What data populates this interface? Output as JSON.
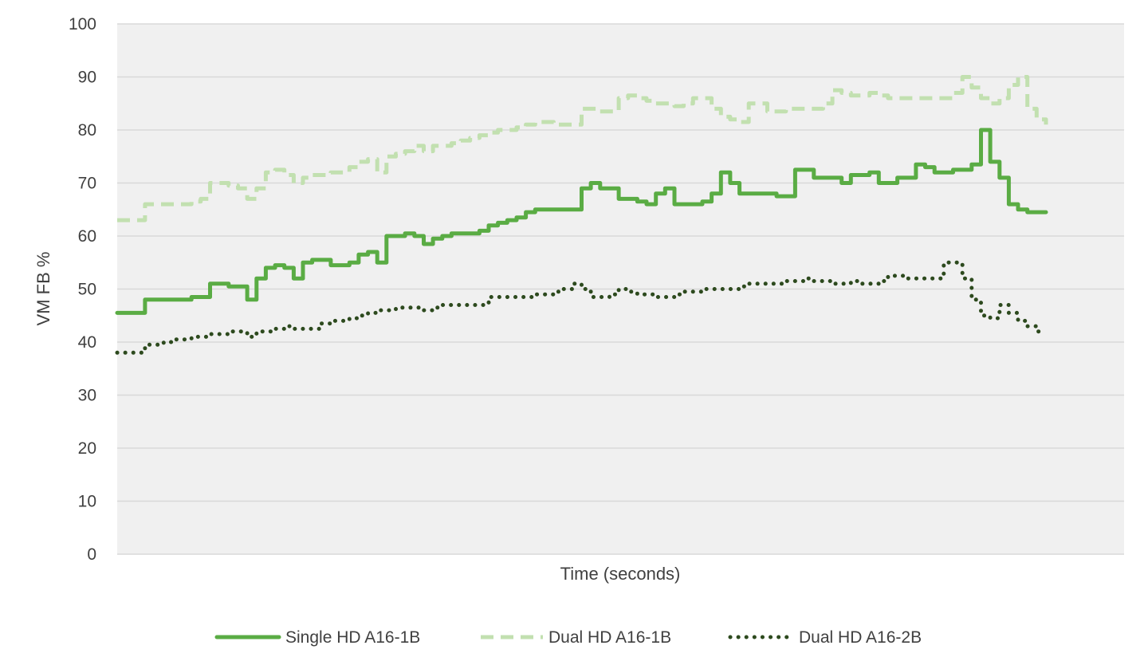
{
  "chart_data": {
    "type": "line",
    "title": "",
    "xlabel": "Time (seconds)",
    "ylabel": "VM FB %",
    "ylim": [
      0,
      100
    ],
    "yticks": [
      0,
      10,
      20,
      30,
      40,
      50,
      60,
      70,
      80,
      90,
      100
    ],
    "grid": true,
    "legend_position": "bottom",
    "background_color": "#f0f0f0",
    "x": [
      0,
      3,
      6,
      9,
      12,
      15,
      18,
      21,
      24,
      27,
      30,
      33,
      36,
      39,
      42,
      45,
      48,
      51,
      54,
      57,
      60,
      63,
      66,
      69,
      72,
      75,
      78,
      81,
      84,
      87,
      90,
      93,
      96,
      99,
      102,
      105,
      108,
      111,
      114,
      117,
      120,
      123,
      126,
      129,
      132,
      135,
      138,
      141,
      144,
      147,
      150,
      153,
      156,
      159,
      162,
      165,
      168,
      171,
      174,
      177,
      180,
      183,
      186,
      189,
      192,
      195,
      198,
      201,
      204,
      207,
      210,
      213,
      216,
      219,
      222,
      225,
      228,
      231,
      234,
      237,
      240,
      243,
      246,
      249,
      252,
      255,
      258,
      261,
      264,
      267,
      270,
      273,
      276,
      279,
      282,
      285,
      288,
      291,
      294,
      297,
      300
    ],
    "series": [
      {
        "name": "Single HD A16-1B",
        "color": "#5aac44",
        "style": "solid",
        "values": [
          45.5,
          45.5,
          45.5,
          48,
          48,
          48,
          48,
          48,
          48.5,
          48.5,
          51,
          51,
          50.5,
          50.5,
          48,
          52,
          54,
          54.5,
          54,
          52,
          55,
          55.5,
          55.5,
          54.5,
          54.5,
          55,
          56.5,
          57,
          55,
          60,
          60,
          60.5,
          60,
          58.5,
          59.5,
          60,
          60.5,
          60.5,
          60.5,
          61,
          62,
          62.5,
          63,
          63.5,
          64.5,
          65,
          65,
          65,
          65,
          65,
          69,
          70,
          69,
          69,
          67,
          67,
          66.5,
          66,
          68,
          69,
          66,
          66,
          66,
          66.5,
          68,
          72,
          70,
          68,
          68,
          68,
          68,
          67.5,
          67.5,
          72.5,
          72.5,
          71,
          71,
          71,
          70,
          71.5,
          71.5,
          72,
          70,
          70,
          71,
          71,
          73.5,
          73,
          72,
          72,
          72.5,
          72.5,
          73.5,
          80,
          74,
          71,
          66,
          65,
          64.5,
          64.5,
          64.5
        ]
      },
      {
        "name": "Dual HD A16-1B",
        "color": "#c2e0b0",
        "style": "dashed",
        "values": [
          63,
          63,
          63,
          66,
          66,
          66,
          66,
          66,
          66.5,
          67,
          70,
          70,
          69.5,
          69,
          67,
          69,
          72,
          72.5,
          71.5,
          70,
          71,
          71.5,
          71.5,
          72,
          72,
          73,
          74,
          74.5,
          72,
          75,
          75.5,
          76,
          77,
          76,
          77,
          77,
          77.5,
          78,
          78.5,
          79,
          79.5,
          80,
          80,
          80.5,
          81,
          81.5,
          81.5,
          81,
          81,
          81,
          84,
          84,
          83.5,
          83.5,
          86,
          86.5,
          86,
          85.5,
          85,
          85,
          84.5,
          85,
          86,
          86,
          84,
          82.5,
          82,
          81.5,
          85,
          85,
          83.5,
          83.5,
          84,
          84,
          84,
          84,
          85,
          87.5,
          87,
          86.5,
          86.5,
          87,
          86.5,
          86,
          86,
          86,
          86,
          86,
          86,
          86,
          87,
          90,
          88,
          86,
          85,
          86,
          88.5,
          90,
          84,
          82,
          81
        ]
      },
      {
        "name": "Dual HD A16-2B",
        "color": "#2d4a1e",
        "style": "dotted",
        "values": [
          38,
          38,
          38,
          39.5,
          39.5,
          40,
          40.5,
          40.5,
          41,
          41,
          41.5,
          41.5,
          42,
          42,
          41,
          42,
          42,
          42.5,
          43,
          42.5,
          42.5,
          42.5,
          43.5,
          44,
          44,
          44.5,
          45,
          45.5,
          46,
          46,
          46.5,
          46.5,
          46.5,
          46,
          46.5,
          47,
          47,
          47,
          47,
          47,
          48.5,
          48.5,
          48.5,
          48.5,
          48.5,
          49,
          49,
          49.5,
          50,
          51,
          50,
          48.5,
          48.5,
          49,
          50,
          49.5,
          49,
          49,
          48.5,
          48.5,
          49,
          49.5,
          49.5,
          50,
          50,
          50,
          50,
          50.5,
          51,
          51,
          51,
          51,
          51.5,
          51.5,
          52,
          51.5,
          51.5,
          51,
          51,
          51.5,
          51,
          51,
          51.5,
          52.5,
          52.5,
          52,
          52,
          52,
          52,
          55,
          55,
          52,
          48,
          45,
          44.5,
          47,
          45.5,
          44,
          43,
          42,
          42
        ]
      }
    ]
  }
}
